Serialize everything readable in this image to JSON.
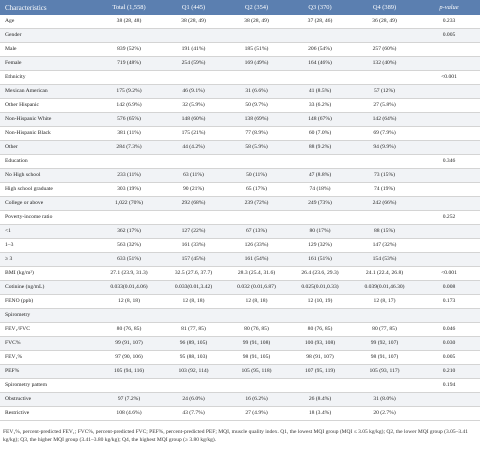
{
  "table": {
    "headers": [
      "Characteristics",
      "Total (1,558)",
      "Q1 (445)",
      "Q2 (354)",
      "Q3 (370)",
      "Q4 (389)",
      "p-value"
    ],
    "rows": [
      [
        "Age",
        "38 (28, 48)",
        "38 (28, 49)",
        "38 (28, 49)",
        "37 (28, 46)",
        "36 (28, 49)",
        "0.233"
      ],
      [
        "Gender",
        "",
        "",
        "",
        "",
        "",
        "0.005"
      ],
      [
        "Male",
        "839 (52%)",
        "191 (41%)",
        "185 (51%)",
        "206 (54%)",
        "257 (60%)",
        ""
      ],
      [
        "Female",
        "719 (48%)",
        "254 (59%)",
        "169 (49%)",
        "164 (46%)",
        "132 (40%)",
        ""
      ],
      [
        "Ethnicity",
        "",
        "",
        "",
        "",
        "",
        "<0.001"
      ],
      [
        "Mexican American",
        "175 (9.2%)",
        "46 (9.1%)",
        "31 (6.6%)",
        "41 (8.5%)",
        "57 (12%)",
        ""
      ],
      [
        "Other Hispanic",
        "142 (6.9%)",
        "32 (5.9%)",
        "50 (9.7%)",
        "33 (6.2%)",
        "27 (5.8%)",
        ""
      ],
      [
        "Non-Hispanic White",
        "576 (65%)",
        "148 (60%)",
        "138 (69%)",
        "148 (67%)",
        "142 (64%)",
        ""
      ],
      [
        "Non-Hispanic Black",
        "381 (11%)",
        "175 (21%)",
        "77 (8.9%)",
        "60 (7.0%)",
        "69 (7.9%)",
        ""
      ],
      [
        "Other",
        "284 (7.3%)",
        "44 (4.2%)",
        "58 (5.9%)",
        "88 (9.2%)",
        "94 (9.9%)",
        ""
      ],
      [
        "Education",
        "",
        "",
        "",
        "",
        "",
        "0.346"
      ],
      [
        "No High school",
        "233 (11%)",
        "63 (11%)",
        "50 (11%)",
        "47 (8.8%)",
        "73 (15%)",
        ""
      ],
      [
        "High school graduate",
        "303 (19%)",
        "90 (21%)",
        "65 (17%)",
        "74 (18%)",
        "74 (19%)",
        ""
      ],
      [
        "College or above",
        "1,022 (70%)",
        "292 (68%)",
        "239 (72%)",
        "249 (73%)",
        "242 (66%)",
        ""
      ],
      [
        "Poverty-income ratio",
        "",
        "",
        "",
        "",
        "",
        "0.252"
      ],
      [
        "<1",
        "362 (17%)",
        "127 (22%)",
        "67 (13%)",
        "80 (17%)",
        "88 (15%)",
        ""
      ],
      [
        "1–3",
        "563 (32%)",
        "161 (33%)",
        "126 (33%)",
        "129 (32%)",
        "147 (32%)",
        ""
      ],
      [
        "≥ 3",
        "633 (51%)",
        "157 (45%)",
        "161 (54%)",
        "161 (51%)",
        "154 (53%)",
        ""
      ],
      [
        "BMI (kg/m²)",
        "27.1 (23.9, 31.3)",
        "32.5 (27.6, 37.7)",
        "28.3 (25.4, 31.6)",
        "26.4 (23.6, 29.3)",
        "24.1 (22.4, 26.8)",
        "<0.001"
      ],
      [
        "Cotinine (ng/mL)",
        "0.033(0.01,4.06)",
        "0.033(0.01,3.42)",
        "0.032 (0.01,6.87)",
        "0.025(0.01,0.33)",
        "0.039(0.01,46.30)",
        "0.008"
      ],
      [
        "FENO (ppb)",
        "12 (8, 18)",
        "12 (8, 18)",
        "12 (8, 18)",
        "12 (10, 19)",
        "12 (8, 17)",
        "0.173"
      ],
      [
        "Spirometry",
        "",
        "",
        "",
        "",
        "",
        ""
      ],
      [
        "FEV₁/FVC",
        "80 (76, 85)",
        "81 (77, 85)",
        "80 (76, 85)",
        "80 (76, 85)",
        "80 (77, 85)",
        "0.046"
      ],
      [
        "FVC%",
        "99 (91, 107)",
        "96 (89, 105)",
        "99 (91, 108)",
        "100 (93, 108)",
        "99 (92, 107)",
        "0.030"
      ],
      [
        "FEV₁%",
        "97 (90, 106)",
        "95 (88, 103)",
        "98 (91, 105)",
        "98 (91, 107)",
        "98 (91, 107)",
        "0.005"
      ],
      [
        "PEF%",
        "105 (94, 116)",
        "103 (92, 114)",
        "105 (95, 118)",
        "107 (95, 119)",
        "105 (93, 117)",
        "0.210"
      ],
      [
        "Spirometry pattern",
        "",
        "",
        "",
        "",
        "",
        "0.194"
      ],
      [
        "Obstructive",
        "97 (7.2%)",
        "24 (6.0%)",
        "16 (6.2%)",
        "26 (8.4%)",
        "31 (8.0%)",
        ""
      ],
      [
        "Restrictive",
        "108 (4.6%)",
        "43 (7.7%)",
        "27 (4.9%)",
        "18 (3.4%)",
        "20 (2.7%)",
        ""
      ]
    ]
  },
  "footnote": "FEV₁%, percent-predicted FEV₁; FVC%, percent-predicted FVC; PEF%, percent-predicted PEF; MQI, muscle quality index. Q1, the lowest MQI group (MQI ≤ 3.05 kg/kg); Q2, the lower MQI group (3.05–3.41 kg/kg); Q3, the higher MQI group (3.41–3.80 kg/kg); Q4, the highest MQI group (≥ 3.80 kg/kg)."
}
